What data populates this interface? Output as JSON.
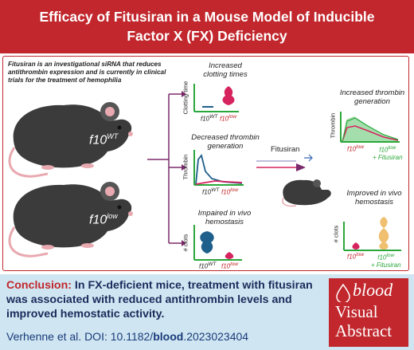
{
  "title": {
    "line1": "Efficacy of Fitusiran in a Mouse Model of Inducible",
    "line2": "Factor X (FX) Deficiency"
  },
  "intro_text": "Fitusiran is an investigational siRNA that reduces antithrombin expression and is currently in clinical trials for the treatment of hemophilia",
  "mice": {
    "wt_label_base": "f10",
    "wt_label_sup": "WT",
    "low_label_base": "f10",
    "low_label_sup": "low"
  },
  "panels": {
    "clotting": {
      "title_line1": "Increased",
      "title_line2": "clotting times",
      "ylabel": "Clotting time",
      "x1_base": "f10",
      "x1_sup": "WT",
      "x2_base": "f10",
      "x2_sup": "low"
    },
    "thrombin": {
      "title_line1": "Decreased thrombin",
      "title_line2": "generation",
      "ylabel": "Thrombin",
      "x1_base": "f10",
      "x1_sup": "WT",
      "x2_base": "f10",
      "x2_sup": "low"
    },
    "hemostasis": {
      "title_line1": "Impaired in vivo",
      "title_line2": "hemostasis",
      "ylabel": "# clots",
      "x1_base": "f10",
      "x1_sup": "WT",
      "x2_base": "f10",
      "x2_sup": "low"
    },
    "fitusiran_label": "Fitusiran",
    "thrombin_right": {
      "title_line1": "Increased thrombin",
      "title_line2": "generation",
      "ylabel": "Thrombin",
      "x1_base": "f10",
      "x1_sup": "low",
      "x2_base": "f10",
      "x2_sup": "low",
      "x2_extra": "+ Fitusiran"
    },
    "hemostasis_right": {
      "title_line1": "Improved in vivo",
      "title_line2": "hemostasis",
      "ylabel": "# clots",
      "x1_base": "f10",
      "x1_sup": "low",
      "x2_base": "f10",
      "x2_sup": "low",
      "x2_extra": "+ Fitusiran"
    }
  },
  "conclusion": {
    "label": "Conclusion:",
    "text": " In FX-deficient mice, treatment with fitusiran was associated with reduced antithrombin levels and improved hemostatic activity."
  },
  "citation": {
    "prefix": "Verhenne et al. DOI: 10.1182/",
    "bold": "blood",
    "suffix": ".2023023404"
  },
  "logo": {
    "word1": "blood",
    "word2": "Visual",
    "word3": "Abstract"
  },
  "colors": {
    "title_red": "#c1272d",
    "conclusion_bg": "#cfe6f2",
    "axis_green": "#2aa73a",
    "purple": "#7b2a6b",
    "wt_blue": "#1f5f8b",
    "low_pink": "#d6245f"
  }
}
